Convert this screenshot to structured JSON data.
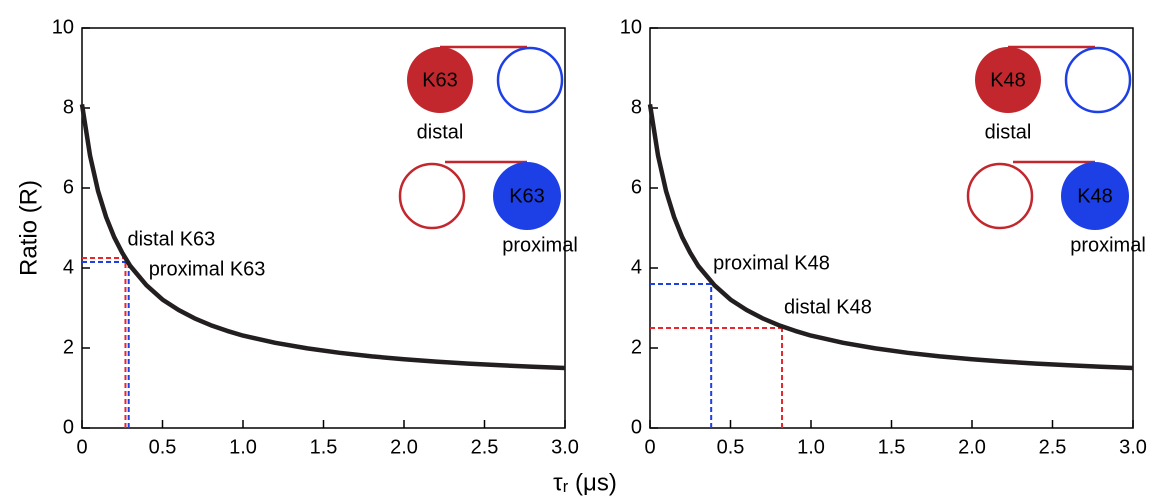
{
  "chart_data": [
    {
      "type": "line",
      "ylabel": "Ratio (R)",
      "xlabel": "τᵣ (μs)",
      "x": [
        0,
        0.05,
        0.1,
        0.15,
        0.2,
        0.25,
        0.3,
        0.4,
        0.5,
        0.6,
        0.7,
        0.8,
        0.9,
        1.0,
        1.2,
        1.4,
        1.6,
        1.8,
        2.0,
        2.2,
        2.4,
        2.6,
        2.8,
        3.0
      ],
      "series": [
        {
          "color": "#231f20",
          "values": [
            8.09,
            6.81,
            5.92,
            5.27,
            4.77,
            4.38,
            4.05,
            3.57,
            3.21,
            2.95,
            2.74,
            2.57,
            2.43,
            2.31,
            2.13,
            1.99,
            1.88,
            1.79,
            1.72,
            1.66,
            1.61,
            1.57,
            1.53,
            1.5
          ]
        }
      ],
      "annotations": [
        {
          "label": "distal K63",
          "color": "#e8262b",
          "x": 0.27,
          "y": 4.25
        },
        {
          "label": "proximal K63",
          "color": "#1d3fe6",
          "x": 0.29,
          "y": 4.15
        }
      ],
      "inset": {
        "top_label": "K63",
        "top_caption": "distal",
        "bottom_label": "K63",
        "bottom_caption": "proximal"
      },
      "xlim": [
        0,
        3.0
      ],
      "ylim": [
        0,
        10
      ],
      "xticks": [
        0,
        0.5,
        {
          "value": 1,
          "label": "1.0"
        },
        1.5,
        {
          "value": 2,
          "label": "2.0"
        },
        2.5,
        {
          "value": 3,
          "label": "3.0"
        }
      ],
      "yticks": [
        0,
        2,
        4,
        6,
        8,
        10
      ]
    },
    {
      "type": "line",
      "x": [
        0,
        0.05,
        0.1,
        0.15,
        0.2,
        0.25,
        0.3,
        0.4,
        0.5,
        0.6,
        0.7,
        0.8,
        0.9,
        1.0,
        1.2,
        1.4,
        1.6,
        1.8,
        2.0,
        2.2,
        2.4,
        2.6,
        2.8,
        3.0
      ],
      "series": [
        {
          "color": "#231f20",
          "values": [
            8.09,
            6.81,
            5.92,
            5.27,
            4.77,
            4.38,
            4.05,
            3.57,
            3.21,
            2.95,
            2.74,
            2.57,
            2.43,
            2.31,
            2.13,
            1.99,
            1.88,
            1.79,
            1.72,
            1.66,
            1.61,
            1.57,
            1.53,
            1.5
          ]
        }
      ],
      "annotations": [
        {
          "label": "proximal K48",
          "color": "#1d3fe6",
          "x": 0.38,
          "y": 3.6
        },
        {
          "label": "distal K48",
          "color": "#e8262b",
          "x": 0.82,
          "y": 2.5
        }
      ],
      "inset": {
        "top_label": "K48",
        "top_caption": "distal",
        "bottom_label": "K48",
        "bottom_caption": "proximal"
      },
      "xlim": [
        0,
        3.0
      ],
      "ylim": [
        0,
        10
      ],
      "xticks": [
        0,
        0.5,
        {
          "value": 1,
          "label": "1.0"
        },
        1.5,
        {
          "value": 2,
          "label": "2.0"
        },
        2.5,
        {
          "value": 3,
          "label": "3.0"
        }
      ],
      "yticks": [
        0,
        2,
        4,
        6,
        8,
        10
      ]
    }
  ]
}
